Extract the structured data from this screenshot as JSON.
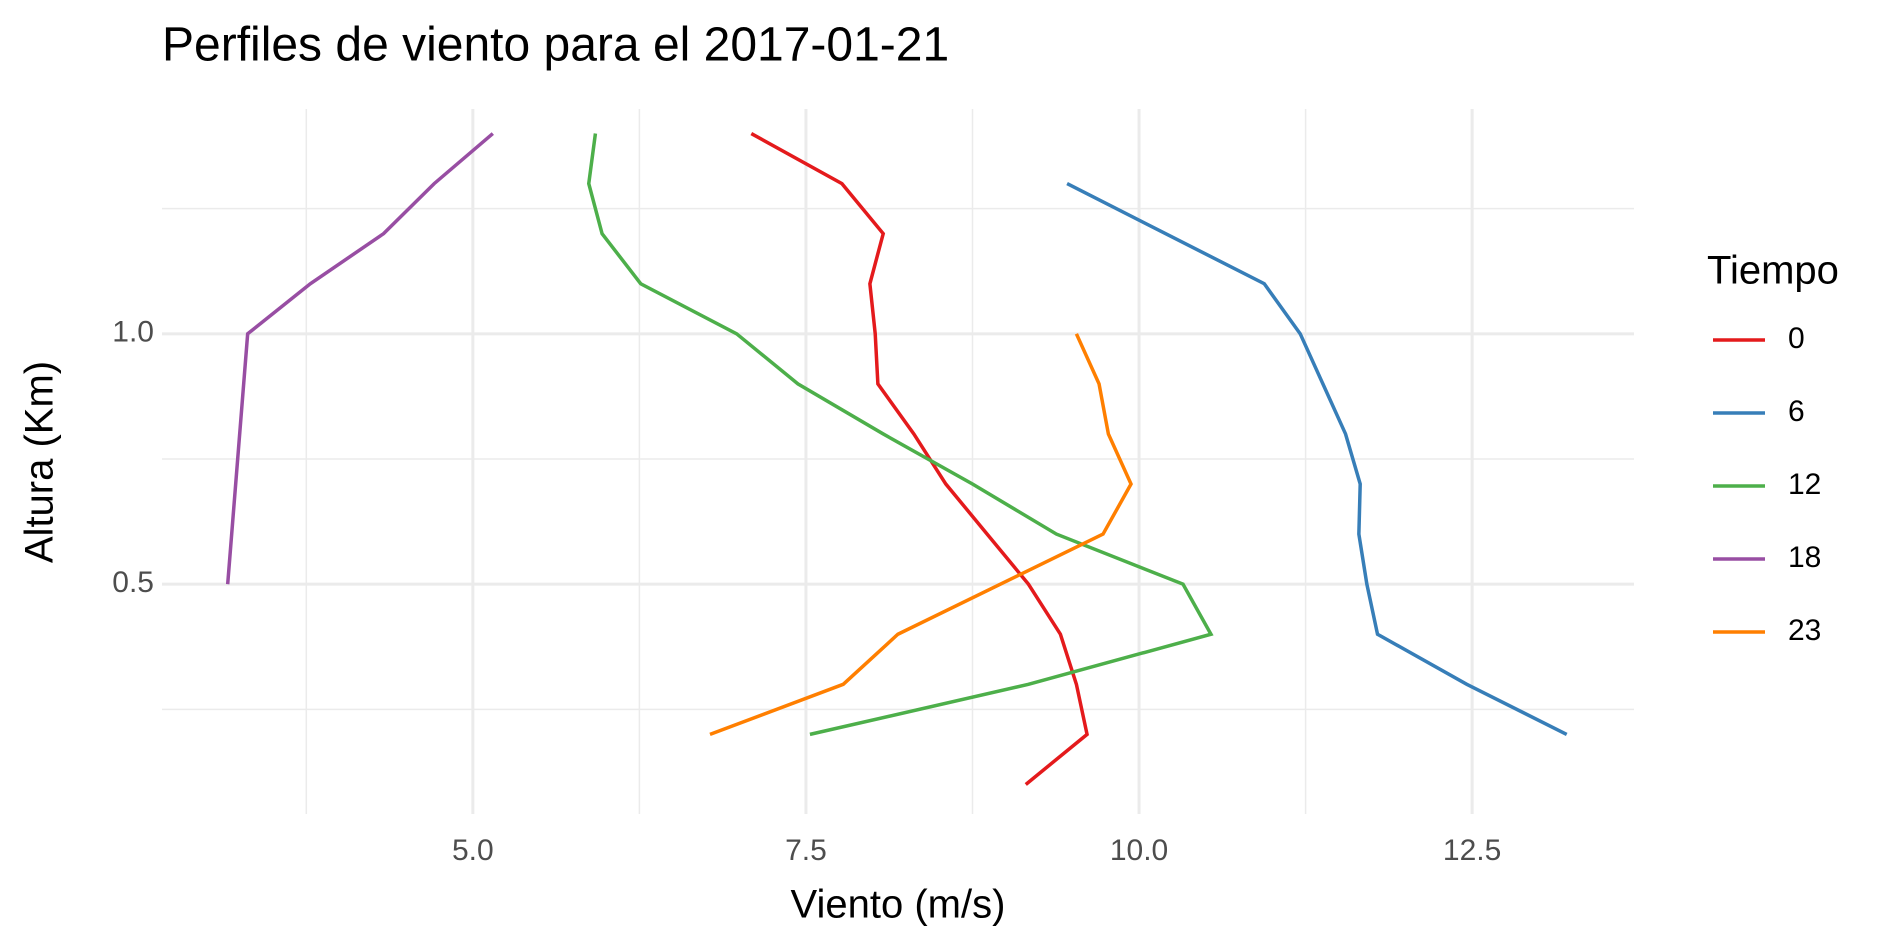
{
  "chart_data": {
    "type": "line",
    "title": "Perfiles de viento para el 2017-01-21",
    "x_label": "Viento (m/s)",
    "y_label": "Altura (Km)",
    "legend_title": "Tiempo",
    "legend_position": "right",
    "grid": true,
    "xlim": [
      2.667,
      13.715
    ],
    "ylim": [
      0.041,
      1.449
    ],
    "xticks": [
      {
        "value": 5,
        "label": "5.0"
      },
      7.5,
      {
        "value": 10,
        "label": "10.0"
      },
      12.5
    ],
    "yticks": [
      0.5,
      {
        "value": 1,
        "label": "1.0"
      }
    ],
    "minor_xticks": [
      3.75,
      6.25,
      8.75,
      11.25
    ],
    "minor_yticks": [
      0.25,
      0.75,
      1.25
    ],
    "series": [
      {
        "name": "0",
        "color": "#e41a1c",
        "x": [
          9.15,
          9.61,
          9.53,
          9.41,
          9.17,
          8.86,
          8.55,
          8.31,
          8.04,
          8.02,
          7.98,
          8.08,
          7.77,
          7.09
        ],
        "y": [
          0.1,
          0.2,
          0.3,
          0.4,
          0.5,
          0.6,
          0.7,
          0.8,
          0.9,
          1.0,
          1.1,
          1.2,
          1.3,
          1.4
        ]
      },
      {
        "name": "6",
        "color": "#377eb8",
        "x": [
          13.21,
          12.46,
          11.79,
          11.71,
          11.65,
          11.66,
          11.55,
          11.38,
          11.21,
          10.94,
          10.2,
          9.46
        ],
        "y": [
          0.2,
          0.3,
          0.4,
          0.5,
          0.6,
          0.7,
          0.8,
          0.9,
          1.0,
          1.1,
          1.2,
          1.3
        ]
      },
      {
        "name": "12",
        "color": "#4daf4a",
        "x": [
          7.53,
          9.17,
          10.54,
          10.33,
          9.38,
          8.75,
          8.08,
          7.44,
          6.98,
          6.26,
          5.97,
          5.87,
          5.92
        ],
        "y": [
          0.2,
          0.3,
          0.4,
          0.5,
          0.6,
          0.7,
          0.8,
          0.9,
          1.0,
          1.1,
          1.2,
          1.3,
          1.4
        ]
      },
      {
        "name": "18",
        "color": "#984ea3",
        "x": [
          3.16,
          3.31,
          3.78,
          4.33,
          4.71,
          5.15
        ],
        "y": [
          0.5,
          1.0,
          1.1,
          1.2,
          1.3,
          1.4
        ]
      },
      {
        "name": "23",
        "color": "#ff7f00",
        "x": [
          6.78,
          7.78,
          8.19,
          9.73,
          9.94,
          9.77,
          9.7,
          9.53
        ],
        "y": [
          0.2,
          0.3,
          0.4,
          0.6,
          0.7,
          0.8,
          0.9,
          1.0
        ]
      }
    ]
  }
}
